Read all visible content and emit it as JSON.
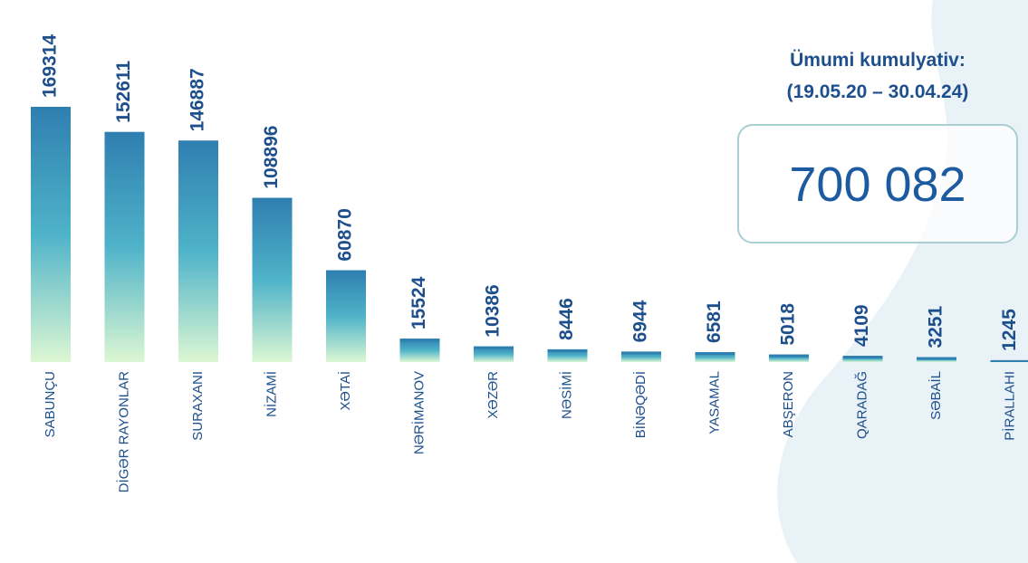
{
  "chart_data": {
    "type": "bar",
    "annotations": [
      "Ümumi kumulyativ:",
      "(19.05.20 – 30.04.24)",
      "700 082"
    ],
    "categories": [
      "SABUNÇU",
      "DİGƏR RAYONLAR",
      "SURAXANI",
      "NİZAMİ",
      "XƏTAİ",
      "NƏRİMANOV",
      "XƏZƏR",
      "NƏSİMİ",
      "BİNƏQƏDİ",
      "YASAMAL",
      "ABŞERON",
      "QARADAĞ",
      "SƏBAİL",
      "PİRALLAHI"
    ],
    "values": [
      169314,
      152611,
      146887,
      108896,
      60870,
      15524,
      10386,
      8446,
      6944,
      6581,
      5018,
      4109,
      3251,
      1245
    ],
    "color": "#2f80b0"
  }
}
